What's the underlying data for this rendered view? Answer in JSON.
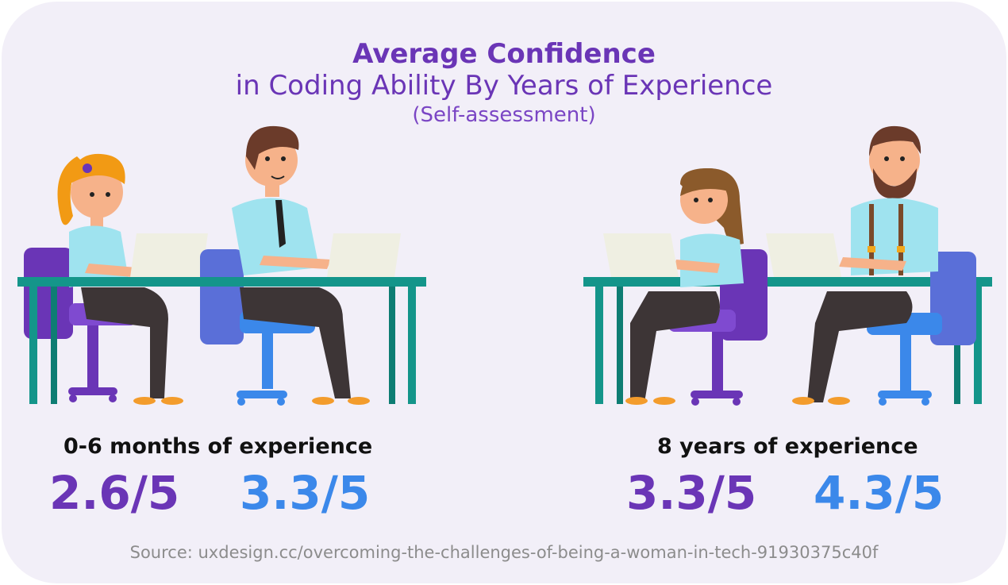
{
  "title": {
    "line1": "Average Confidence",
    "line2": "in Coding Ability By Years of Experience",
    "line3": "(Self-assessment)"
  },
  "groups": [
    {
      "label": "0-6 months of experience",
      "woman_score": "2.6/5",
      "man_score": "3.3/5"
    },
    {
      "label": "8 years of experience",
      "woman_score": "3.3/5",
      "man_score": "4.3/5"
    }
  ],
  "source": "Source: uxdesign.cc/overcoming-the-challenges-of-being-a-woman-in-tech-91930375c40f",
  "colors": {
    "purple": "#6a35b6",
    "blue": "#3b88ea",
    "desk": "#14958a",
    "shirt": "#9fe3ef",
    "pants": "#3d3536"
  }
}
